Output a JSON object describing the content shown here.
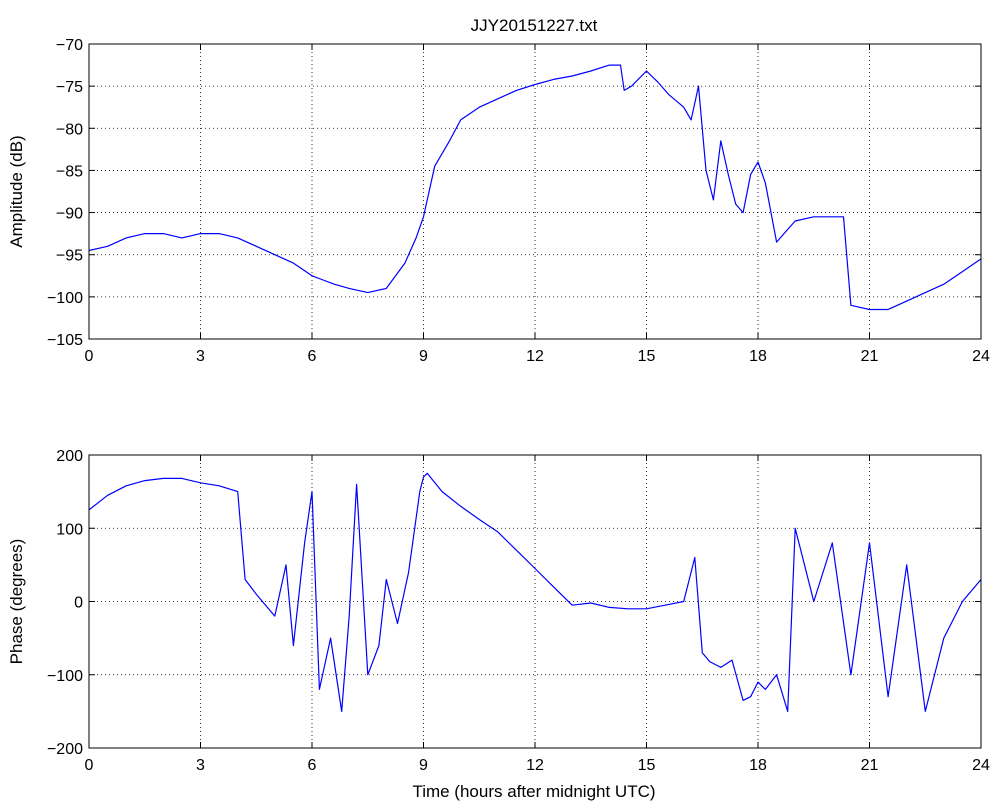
{
  "chart_data": [
    {
      "type": "line",
      "title": "JJY20151227.txt",
      "xlabel": "",
      "ylabel": "Amplitude (dB)",
      "xlim": [
        0,
        24
      ],
      "ylim": [
        -105,
        -70
      ],
      "xticks": [
        "0",
        "3",
        "6",
        "9",
        "12",
        "15",
        "18",
        "21",
        "24"
      ],
      "yticks": [
        "-70",
        "-75",
        "-80",
        "-85",
        "-90",
        "-95",
        "-100",
        "-105"
      ],
      "grid": true,
      "color": "#0000ff",
      "series": [
        {
          "x": [
            0,
            0.5,
            1,
            1.5,
            2,
            2.5,
            3,
            3.5,
            4,
            4.5,
            5,
            5.5,
            6,
            6.3,
            6.6,
            7,
            7.5,
            8,
            8.5,
            8.8,
            9,
            9.3,
            9.7,
            10,
            10.5,
            11,
            11.5,
            12,
            12.5,
            13,
            13.5,
            14,
            14.3,
            14.4,
            14.6,
            15,
            15.3,
            15.6,
            16,
            16.2,
            16.4,
            16.6,
            16.8,
            17,
            17.2,
            17.4,
            17.6,
            17.8,
            18,
            18.2,
            18.5,
            18.8,
            19,
            19.5,
            20,
            20.3,
            20.5,
            21,
            21.5,
            22,
            22.5,
            23,
            23.5,
            24
          ],
          "y": [
            -94.5,
            -94,
            -93,
            -92.5,
            -92.5,
            -93,
            -92.5,
            -92.5,
            -93,
            -94,
            -95,
            -96,
            -97.5,
            -98,
            -98.5,
            -99,
            -99.5,
            -99,
            -96,
            -93,
            -90.5,
            -84.5,
            -81.5,
            -79,
            -77.5,
            -76.5,
            -75.5,
            -74.8,
            -74.2,
            -73.8,
            -73.2,
            -72.5,
            -72.5,
            -75.5,
            -75,
            -73.2,
            -74.5,
            -76,
            -77.5,
            -79,
            -75,
            -85,
            -88.5,
            -81.5,
            -85.5,
            -89,
            -90,
            -85.5,
            -84,
            -86.5,
            -93.5,
            -92,
            -91,
            -90.5,
            -90.5,
            -90.5,
            -101,
            -101.5,
            -101.5,
            -100.5,
            -99.5,
            -98.5,
            -97,
            -95.5
          ]
        }
      ]
    },
    {
      "type": "line",
      "title": "",
      "xlabel": "Time (hours after midnight UTC)",
      "ylabel": "Phase (degrees)",
      "xlim": [
        0,
        24
      ],
      "ylim": [
        -200,
        200
      ],
      "xticks": [
        "0",
        "3",
        "6",
        "9",
        "12",
        "15",
        "18",
        "21",
        "24"
      ],
      "yticks": [
        "200",
        "100",
        "0",
        "-100",
        "-200"
      ],
      "grid": true,
      "color": "#0000ff",
      "series": [
        {
          "x": [
            0,
            0.5,
            1,
            1.5,
            2,
            2.5,
            3,
            3.5,
            4,
            4.2,
            4.5,
            5,
            5.3,
            5.5,
            5.8,
            6,
            6.2,
            6.5,
            6.8,
            7,
            7.2,
            7.5,
            7.8,
            8,
            8.3,
            8.6,
            8.9,
            9,
            9.1,
            9.5,
            10,
            10.5,
            11,
            11.5,
            12,
            12.5,
            13,
            13.5,
            14,
            14.5,
            15,
            15.5,
            16,
            16.3,
            16.5,
            16.7,
            17,
            17.3,
            17.6,
            17.8,
            18,
            18.2,
            18.5,
            18.8,
            19,
            19.5,
            20,
            20.5,
            21,
            21.5,
            22,
            22.5,
            23,
            23.5,
            24
          ],
          "y": [
            125,
            145,
            158,
            165,
            168,
            168,
            162,
            158,
            150,
            30,
            10,
            -20,
            50,
            -60,
            80,
            150,
            -120,
            -50,
            -150,
            -20,
            160,
            -100,
            -60,
            30,
            -30,
            40,
            150,
            170,
            175,
            150,
            130,
            112,
            95,
            70,
            45,
            20,
            -5,
            -2,
            -8,
            -10,
            -10,
            -5,
            0,
            60,
            -70,
            -82,
            -90,
            -80,
            -135,
            -130,
            -110,
            -120,
            -100,
            -150,
            100,
            0,
            80,
            -100,
            80,
            -130,
            50,
            -150,
            -50,
            0,
            30
          ]
        }
      ]
    }
  ]
}
